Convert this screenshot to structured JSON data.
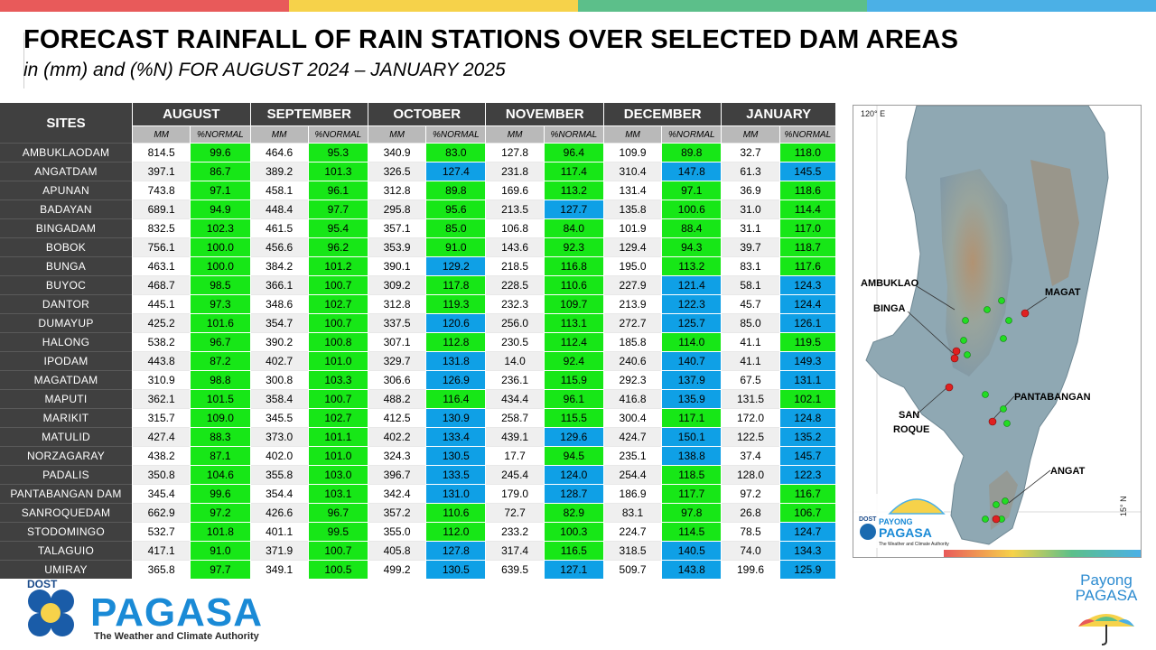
{
  "header": {
    "title": "FORECAST RAINFALL OF RAIN STATIONS OVER SELECTED DAM AREAS",
    "subtitle": "in (mm) and (%N) FOR AUGUST 2024 – JANUARY 2025"
  },
  "colors": {
    "topbar": [
      "#e85a5a",
      "#f6d24a",
      "#5cbf8a",
      "#4bb0e6"
    ],
    "header_bg": "#404040",
    "subheader_bg": "#b9b9b9",
    "normal": "#17e717",
    "above_normal": "#0fa0e6"
  },
  "table": {
    "sites_header": "SITES",
    "months": [
      "AUGUST",
      "SEPTEMBER",
      "OCTOBER",
      "NOVEMBER",
      "DECEMBER",
      "JANUARY"
    ],
    "mm_label": "MM",
    "pct_label": "%NORMAL",
    "rows": [
      {
        "site": "AMBUKLAODAM",
        "v": [
          [
            "814.5",
            "99.6",
            "g"
          ],
          [
            "464.6",
            "95.3",
            "g"
          ],
          [
            "340.9",
            "83.0",
            "g"
          ],
          [
            "127.8",
            "96.4",
            "g"
          ],
          [
            "109.9",
            "89.8",
            "g"
          ],
          [
            "32.7",
            "118.0",
            "g"
          ]
        ]
      },
      {
        "site": "ANGATDAM",
        "v": [
          [
            "397.1",
            "86.7",
            "g"
          ],
          [
            "389.2",
            "101.3",
            "g"
          ],
          [
            "326.5",
            "127.4",
            "b"
          ],
          [
            "231.8",
            "117.4",
            "g"
          ],
          [
            "310.4",
            "147.8",
            "b"
          ],
          [
            "61.3",
            "145.5",
            "b"
          ]
        ]
      },
      {
        "site": "APUNAN",
        "v": [
          [
            "743.8",
            "97.1",
            "g"
          ],
          [
            "458.1",
            "96.1",
            "g"
          ],
          [
            "312.8",
            "89.8",
            "g"
          ],
          [
            "169.6",
            "113.2",
            "g"
          ],
          [
            "131.4",
            "97.1",
            "g"
          ],
          [
            "36.9",
            "118.6",
            "g"
          ]
        ]
      },
      {
        "site": "BADAYAN",
        "v": [
          [
            "689.1",
            "94.9",
            "g"
          ],
          [
            "448.4",
            "97.7",
            "g"
          ],
          [
            "295.8",
            "95.6",
            "g"
          ],
          [
            "213.5",
            "127.7",
            "b"
          ],
          [
            "135.8",
            "100.6",
            "g"
          ],
          [
            "31.0",
            "114.4",
            "g"
          ]
        ]
      },
      {
        "site": "BINGADAM",
        "v": [
          [
            "832.5",
            "102.3",
            "g"
          ],
          [
            "461.5",
            "95.4",
            "g"
          ],
          [
            "357.1",
            "85.0",
            "g"
          ],
          [
            "106.8",
            "84.0",
            "g"
          ],
          [
            "101.9",
            "88.4",
            "g"
          ],
          [
            "31.1",
            "117.0",
            "g"
          ]
        ]
      },
      {
        "site": "BOBOK",
        "v": [
          [
            "756.1",
            "100.0",
            "g"
          ],
          [
            "456.6",
            "96.2",
            "g"
          ],
          [
            "353.9",
            "91.0",
            "g"
          ],
          [
            "143.6",
            "92.3",
            "g"
          ],
          [
            "129.4",
            "94.3",
            "g"
          ],
          [
            "39.7",
            "118.7",
            "g"
          ]
        ]
      },
      {
        "site": "BUNGA",
        "v": [
          [
            "463.1",
            "100.0",
            "g"
          ],
          [
            "384.2",
            "101.2",
            "g"
          ],
          [
            "390.1",
            "129.2",
            "b"
          ],
          [
            "218.5",
            "116.8",
            "g"
          ],
          [
            "195.0",
            "113.2",
            "g"
          ],
          [
            "83.1",
            "117.6",
            "g"
          ]
        ]
      },
      {
        "site": "BUYOC",
        "v": [
          [
            "468.7",
            "98.5",
            "g"
          ],
          [
            "366.1",
            "100.7",
            "g"
          ],
          [
            "309.2",
            "117.8",
            "g"
          ],
          [
            "228.5",
            "110.6",
            "g"
          ],
          [
            "227.9",
            "121.4",
            "b"
          ],
          [
            "58.1",
            "124.3",
            "b"
          ]
        ]
      },
      {
        "site": "DANTOR",
        "v": [
          [
            "445.1",
            "97.3",
            "g"
          ],
          [
            "348.6",
            "102.7",
            "g"
          ],
          [
            "312.8",
            "119.3",
            "g"
          ],
          [
            "232.3",
            "109.7",
            "g"
          ],
          [
            "213.9",
            "122.3",
            "b"
          ],
          [
            "45.7",
            "124.4",
            "b"
          ]
        ]
      },
      {
        "site": "DUMAYUP",
        "v": [
          [
            "425.2",
            "101.6",
            "g"
          ],
          [
            "354.7",
            "100.7",
            "g"
          ],
          [
            "337.5",
            "120.6",
            "b"
          ],
          [
            "256.0",
            "113.1",
            "g"
          ],
          [
            "272.7",
            "125.7",
            "b"
          ],
          [
            "85.0",
            "126.1",
            "b"
          ]
        ]
      },
      {
        "site": "HALONG",
        "v": [
          [
            "538.2",
            "96.7",
            "g"
          ],
          [
            "390.2",
            "100.8",
            "g"
          ],
          [
            "307.1",
            "112.8",
            "g"
          ],
          [
            "230.5",
            "112.4",
            "g"
          ],
          [
            "185.8",
            "114.0",
            "g"
          ],
          [
            "41.1",
            "119.5",
            "g"
          ]
        ]
      },
      {
        "site": "IPODAM",
        "v": [
          [
            "443.8",
            "87.2",
            "g"
          ],
          [
            "402.7",
            "101.0",
            "g"
          ],
          [
            "329.7",
            "131.8",
            "b"
          ],
          [
            "14.0",
            "92.4",
            "g"
          ],
          [
            "240.6",
            "140.7",
            "b"
          ],
          [
            "41.1",
            "149.3",
            "b"
          ]
        ]
      },
      {
        "site": "MAGATDAM",
        "v": [
          [
            "310.9",
            "98.8",
            "g"
          ],
          [
            "300.8",
            "103.3",
            "g"
          ],
          [
            "306.6",
            "126.9",
            "b"
          ],
          [
            "236.1",
            "115.9",
            "g"
          ],
          [
            "292.3",
            "137.9",
            "b"
          ],
          [
            "67.5",
            "131.1",
            "b"
          ]
        ]
      },
      {
        "site": "MAPUTI",
        "v": [
          [
            "362.1",
            "101.5",
            "g"
          ],
          [
            "358.4",
            "100.7",
            "g"
          ],
          [
            "488.2",
            "116.4",
            "g"
          ],
          [
            "434.4",
            "96.1",
            "g"
          ],
          [
            "416.8",
            "135.9",
            "b"
          ],
          [
            "131.5",
            "102.1",
            "g"
          ]
        ]
      },
      {
        "site": "MARIKIT",
        "v": [
          [
            "315.7",
            "109.0",
            "g"
          ],
          [
            "345.5",
            "102.7",
            "g"
          ],
          [
            "412.5",
            "130.9",
            "b"
          ],
          [
            "258.7",
            "115.5",
            "g"
          ],
          [
            "300.4",
            "117.1",
            "g"
          ],
          [
            "172.0",
            "124.8",
            "b"
          ]
        ]
      },
      {
        "site": "MATULID",
        "v": [
          [
            "427.4",
            "88.3",
            "g"
          ],
          [
            "373.0",
            "101.1",
            "g"
          ],
          [
            "402.2",
            "133.4",
            "b"
          ],
          [
            "439.1",
            "129.6",
            "b"
          ],
          [
            "424.7",
            "150.1",
            "b"
          ],
          [
            "122.5",
            "135.2",
            "b"
          ]
        ]
      },
      {
        "site": "NORZAGARAY",
        "v": [
          [
            "438.2",
            "87.1",
            "g"
          ],
          [
            "402.0",
            "101.0",
            "g"
          ],
          [
            "324.3",
            "130.5",
            "b"
          ],
          [
            "17.7",
            "94.5",
            "g"
          ],
          [
            "235.1",
            "138.8",
            "b"
          ],
          [
            "37.4",
            "145.7",
            "b"
          ]
        ]
      },
      {
        "site": "PADALIS",
        "v": [
          [
            "350.8",
            "104.6",
            "g"
          ],
          [
            "355.8",
            "103.0",
            "g"
          ],
          [
            "396.7",
            "133.5",
            "b"
          ],
          [
            "245.4",
            "124.0",
            "b"
          ],
          [
            "254.4",
            "118.5",
            "g"
          ],
          [
            "128.0",
            "122.3",
            "b"
          ]
        ]
      },
      {
        "site": "PANTABANGAN DAM",
        "v": [
          [
            "345.4",
            "99.6",
            "g"
          ],
          [
            "354.4",
            "103.1",
            "g"
          ],
          [
            "342.4",
            "131.0",
            "b"
          ],
          [
            "179.0",
            "128.7",
            "b"
          ],
          [
            "186.9",
            "117.7",
            "g"
          ],
          [
            "97.2",
            "116.7",
            "g"
          ]
        ]
      },
      {
        "site": "SANROQUEDAM",
        "v": [
          [
            "662.9",
            "97.2",
            "g"
          ],
          [
            "426.6",
            "96.7",
            "g"
          ],
          [
            "357.2",
            "110.6",
            "g"
          ],
          [
            "72.7",
            "82.9",
            "g"
          ],
          [
            "83.1",
            "97.8",
            "g"
          ],
          [
            "26.8",
            "106.7",
            "g"
          ]
        ]
      },
      {
        "site": "STODOMINGO",
        "v": [
          [
            "532.7",
            "101.8",
            "g"
          ],
          [
            "401.1",
            "99.5",
            "g"
          ],
          [
            "355.0",
            "112.0",
            "g"
          ],
          [
            "233.2",
            "100.3",
            "g"
          ],
          [
            "224.7",
            "114.5",
            "g"
          ],
          [
            "78.5",
            "124.7",
            "b"
          ]
        ]
      },
      {
        "site": "TALAGUIO",
        "v": [
          [
            "417.1",
            "91.0",
            "g"
          ],
          [
            "371.9",
            "100.7",
            "g"
          ],
          [
            "405.8",
            "127.8",
            "b"
          ],
          [
            "317.4",
            "116.5",
            "g"
          ],
          [
            "318.5",
            "140.5",
            "b"
          ],
          [
            "74.0",
            "134.3",
            "b"
          ]
        ]
      },
      {
        "site": "UMIRAY",
        "v": [
          [
            "365.8",
            "97.7",
            "g"
          ],
          [
            "349.1",
            "100.5",
            "g"
          ],
          [
            "499.2",
            "130.5",
            "b"
          ],
          [
            "639.5",
            "127.1",
            "b"
          ],
          [
            "509.7",
            "143.8",
            "b"
          ],
          [
            "199.6",
            "125.9",
            "b"
          ]
        ]
      }
    ]
  },
  "map": {
    "lon_label": "120° E",
    "lat_label": "15° N",
    "labels": {
      "ambuklao": "AMBUKLAO",
      "binga": "BINGA",
      "magat": "MAGAT",
      "pantabangan": "PANTABANGAN",
      "san": "SAN",
      "roque": "ROQUE",
      "angat": "ANGAT"
    },
    "logo_small_dost": "DOST",
    "logo_small_word": "PAYONG",
    "logo_small_word2": "PAGASA",
    "logo_small_tag": "The Weather and Climate Authority"
  },
  "footer": {
    "dost": "DOST",
    "pagasa": "PAGASA",
    "tagline": "The Weather and Climate Authority",
    "payong_line1": "Payong",
    "payong_line2": "PAGASA"
  }
}
